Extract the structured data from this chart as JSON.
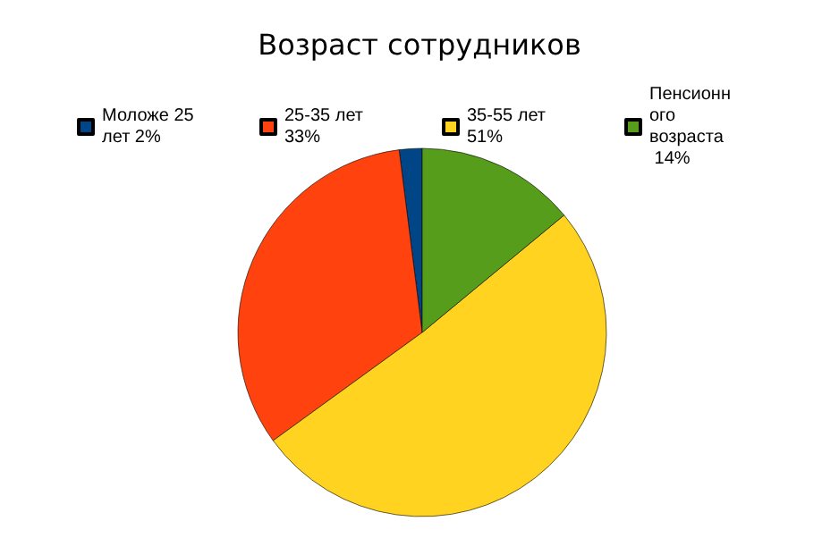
{
  "chart_data": {
    "type": "pie",
    "title": "Возраст сотрудников",
    "categories": [
      "Моложе 25 лет 2%",
      "25-35 лет 33%",
      "35-55 лет 51%",
      "Пенсионного возраста 14%"
    ],
    "values": [
      2,
      33,
      51,
      14
    ],
    "colors": [
      "#004586",
      "#ff420e",
      "#ffd320",
      "#579d1c"
    ],
    "legend": "top"
  }
}
